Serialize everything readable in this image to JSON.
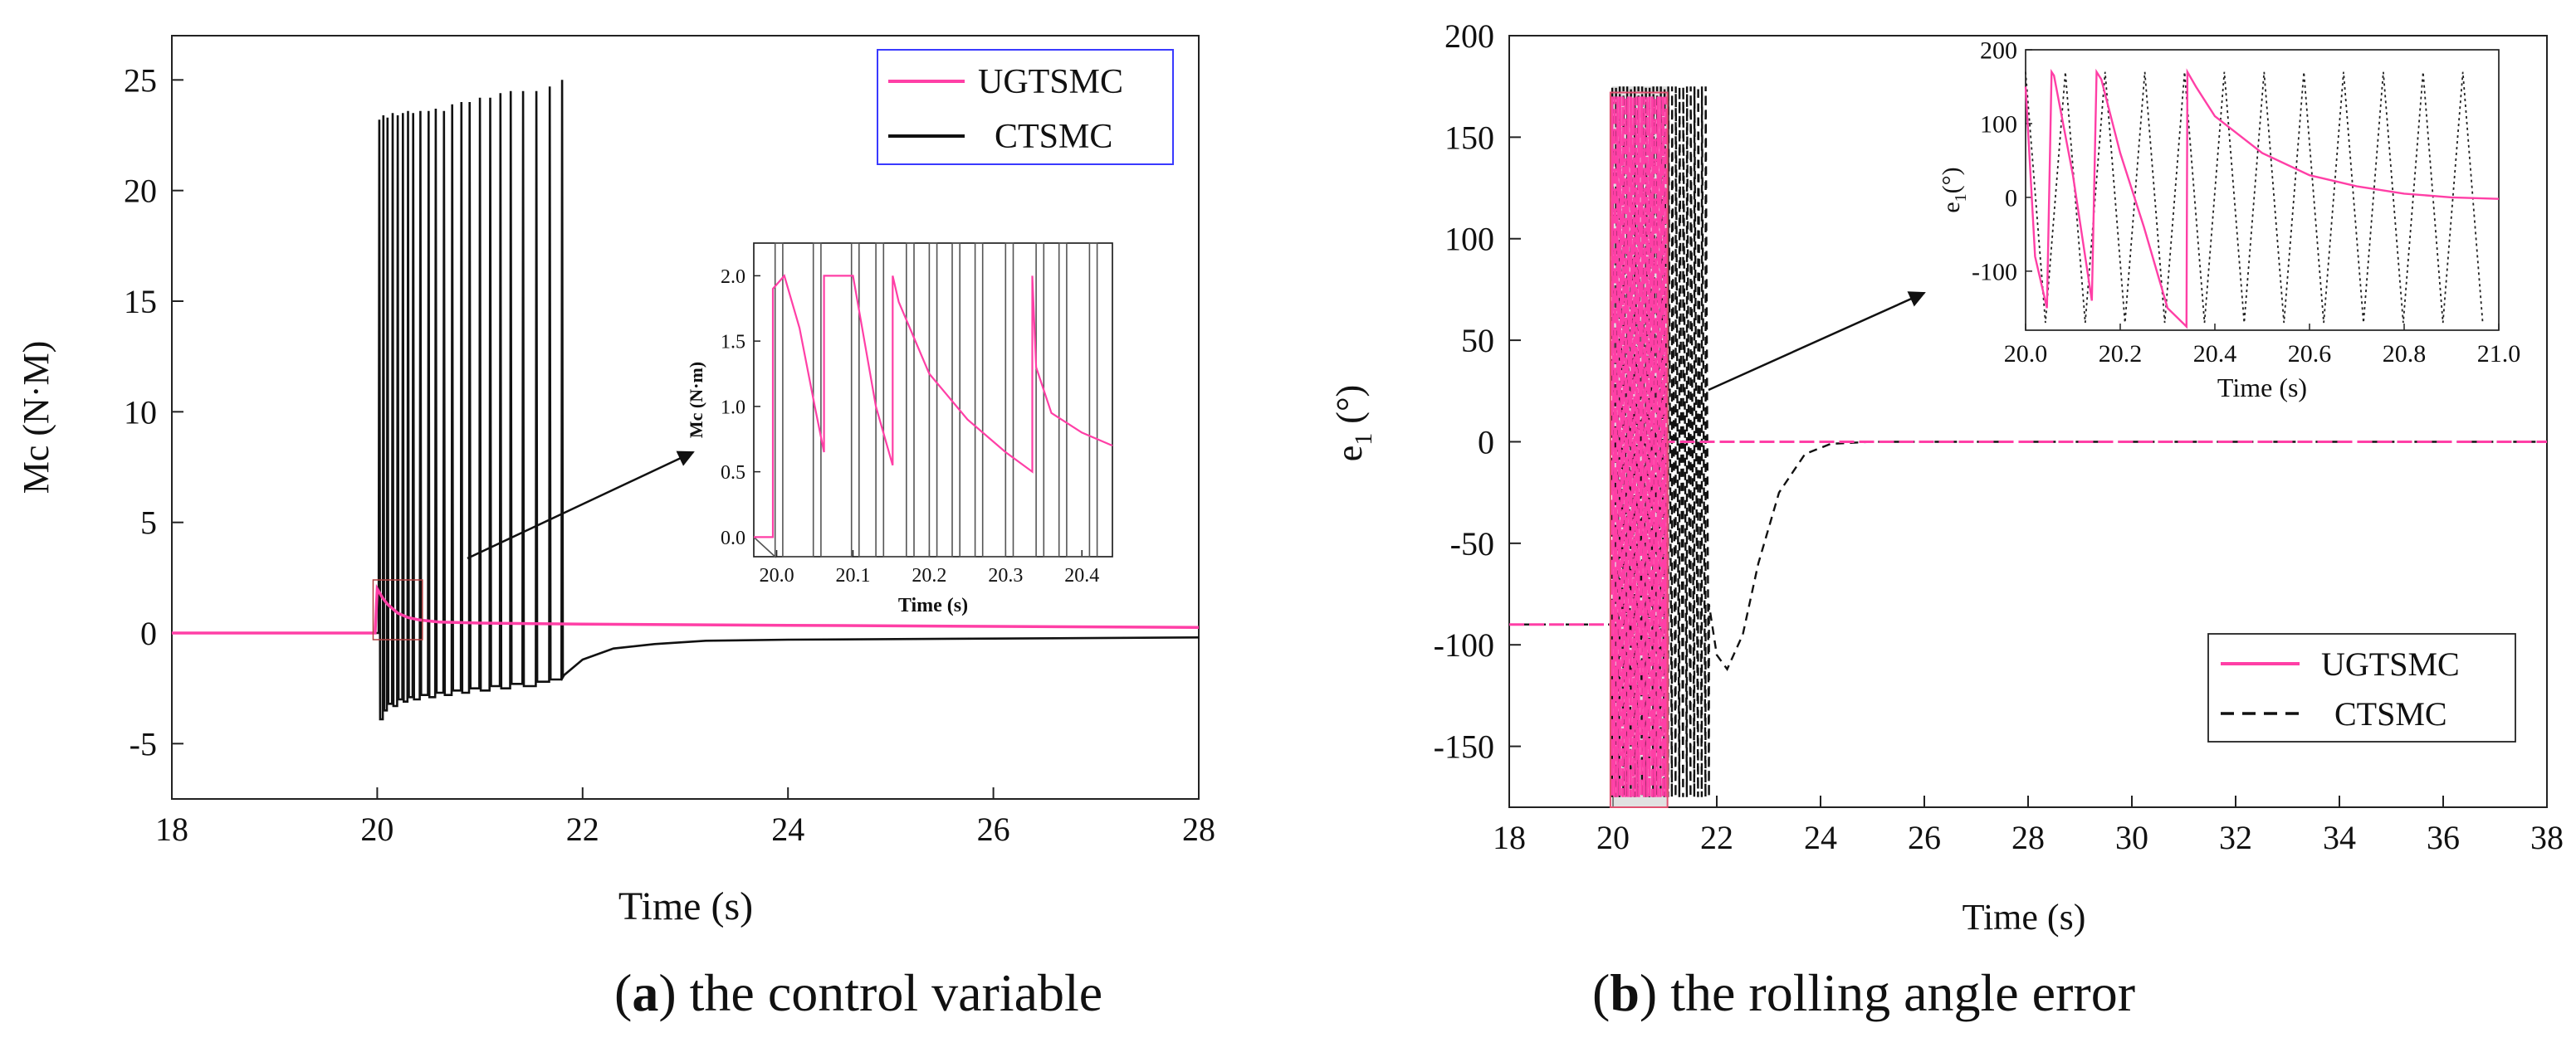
{
  "captions": {
    "a": {
      "paren_open": "(",
      "letter": "a",
      "paren_close": ")",
      "text": " the control variable"
    },
    "b": {
      "paren_open": "(",
      "letter": "b",
      "paren_close": ")",
      "text": " the rolling angle error"
    }
  },
  "colors": {
    "ugtsmc": "#ff3fa6",
    "ctsmc": "#111111",
    "legend_box_a": "#3a3aff",
    "axis": "#222222"
  },
  "chart_data": [
    {
      "id": "a",
      "type": "line",
      "ylabel": "Mc (N·M)",
      "xlabel": "Time (s)",
      "xlim": [
        18,
        28
      ],
      "ylim": [
        -7.5,
        27
      ],
      "xticks": [
        18,
        20,
        22,
        24,
        26,
        28
      ],
      "yticks": [
        -5,
        0,
        5,
        10,
        15,
        20,
        25
      ],
      "legend": [
        "UGTSMC",
        "CTSMC"
      ],
      "series": [
        {
          "name": "UGTSMC",
          "x": [
            18,
            19.98,
            20.0,
            20.05,
            20.1,
            20.2,
            20.3,
            20.4,
            20.6,
            21,
            22,
            24,
            26,
            28
          ],
          "y": [
            0,
            0,
            2.0,
            1.6,
            1.3,
            0.9,
            0.7,
            0.6,
            0.5,
            0.45,
            0.4,
            0.35,
            0.3,
            0.25
          ]
        },
        {
          "name": "CTSMC",
          "pre": {
            "x": [
              18,
              19.98
            ],
            "y": [
              0,
              0
            ]
          },
          "spikes": [
            {
              "t": 20.02,
              "peak": 23.2,
              "low": -3.9
            },
            {
              "t": 20.06,
              "peak": 23.4,
              "low": -3.5
            },
            {
              "t": 20.1,
              "peak": 23.3,
              "low": -3.2
            },
            {
              "t": 20.15,
              "peak": 23.5,
              "low": -3.3
            },
            {
              "t": 20.2,
              "peak": 23.4,
              "low": -3.0
            },
            {
              "t": 20.25,
              "peak": 23.5,
              "low": -3.1
            },
            {
              "t": 20.3,
              "peak": 23.6,
              "low": -2.9
            },
            {
              "t": 20.35,
              "peak": 23.5,
              "low": -3.0
            },
            {
              "t": 20.42,
              "peak": 23.6,
              "low": -2.8
            },
            {
              "t": 20.5,
              "peak": 23.6,
              "low": -2.9
            },
            {
              "t": 20.57,
              "peak": 23.7,
              "low": -2.7
            },
            {
              "t": 20.65,
              "peak": 23.6,
              "low": -2.8
            },
            {
              "t": 20.73,
              "peak": 23.9,
              "low": -2.6
            },
            {
              "t": 20.82,
              "peak": 24.0,
              "low": -2.7
            },
            {
              "t": 20.9,
              "peak": 24.0,
              "low": -2.5
            },
            {
              "t": 21.0,
              "peak": 24.2,
              "low": -2.6
            },
            {
              "t": 21.1,
              "peak": 24.2,
              "low": -2.4
            },
            {
              "t": 21.2,
              "peak": 24.4,
              "low": -2.5
            },
            {
              "t": 21.3,
              "peak": 24.5,
              "low": -2.3
            },
            {
              "t": 21.42,
              "peak": 24.5,
              "low": -2.4
            },
            {
              "t": 21.55,
              "peak": 24.5,
              "low": -2.2
            },
            {
              "t": 21.68,
              "peak": 24.7,
              "low": -2.1
            },
            {
              "t": 21.8,
              "peak": 25.0,
              "low": -2.0
            }
          ],
          "tail": {
            "x": [
              21.82,
              22.0,
              22.3,
              22.7,
              23.2,
              24,
              26,
              28
            ],
            "y": [
              -1.9,
              -1.2,
              -0.7,
              -0.5,
              -0.35,
              -0.3,
              -0.25,
              -0.2
            ]
          }
        }
      ],
      "inset": {
        "xlabel": "Time (s)",
        "ylabel": "Mc (N·m)",
        "xlim": [
          19.97,
          20.44
        ],
        "ylim": [
          -0.15,
          2.25
        ],
        "xticks": [
          20.0,
          20.1,
          20.2,
          20.3,
          20.4
        ],
        "xtick_labels": [
          "20.0",
          "20.1",
          "20.2",
          "20.3",
          "20.4"
        ],
        "yticks": [
          0.0,
          0.5,
          1.0,
          1.5,
          2.0
        ],
        "ytick_labels": [
          "0.0",
          "0.5",
          "1.0",
          "1.5",
          "2.0"
        ],
        "ugtsmc": {
          "x": [
            19.97,
            19.995,
            19.995,
            20.01,
            20.03,
            20.05,
            20.062,
            20.062,
            20.08,
            20.1,
            20.13,
            20.152,
            20.152,
            20.16,
            20.2,
            20.25,
            20.3,
            20.335,
            20.335,
            20.34,
            20.36,
            20.4,
            20.44
          ],
          "y": [
            0.0,
            0.0,
            1.9,
            2.0,
            1.6,
            1.0,
            0.65,
            2.0,
            2.0,
            2.0,
            1.0,
            0.55,
            2.0,
            1.8,
            1.25,
            0.9,
            0.65,
            0.5,
            2.0,
            1.3,
            0.95,
            0.8,
            0.7
          ]
        },
        "ctsmc_edges": [
          19.998,
          20.008,
          20.048,
          20.058,
          20.098,
          20.108,
          20.13,
          20.14,
          20.17,
          20.18,
          20.2,
          20.21,
          20.23,
          20.24,
          20.26,
          20.27,
          20.3,
          20.31,
          20.34,
          20.35,
          20.37,
          20.38,
          20.41,
          20.42
        ]
      }
    },
    {
      "id": "b",
      "type": "line",
      "ylabel": "e",
      "ylabel_sub": "1",
      "ylabel_unit": " (°)",
      "xlabel": "Time (s)",
      "xlim": [
        18,
        38
      ],
      "ylim": [
        -180,
        200
      ],
      "xticks": [
        18,
        20,
        22,
        24,
        26,
        28,
        30,
        32,
        34,
        36,
        38
      ],
      "yticks": [
        -150,
        -100,
        -50,
        0,
        50,
        100,
        150,
        200
      ],
      "legend": [
        "UGTSMC",
        "CTSMC"
      ],
      "series": [
        {
          "name": "UGTSMC",
          "pre": {
            "x": [
              18,
              19.98
            ],
            "y": [
              -90,
              -90
            ]
          },
          "saw_region": [
            19.98,
            21.05
          ],
          "amplitude": [
            -175,
            170
          ],
          "post": {
            "x": [
              21.05,
              21.5,
              22,
              24,
              38
            ],
            "y": [
              0,
              0,
              0,
              0,
              0
            ]
          }
        },
        {
          "name": "CTSMC",
          "pre": {
            "x": [
              18,
              19.98
            ],
            "y": [
              -90,
              -90
            ]
          },
          "saw_region": [
            19.98,
            21.85
          ],
          "amplitude": [
            -175,
            175
          ],
          "post": {
            "x": [
              21.85,
              22.0,
              22.2,
              22.5,
              22.8,
              23.2,
              23.7,
              24.2,
              25,
              38
            ],
            "y": [
              -80,
              -105,
              -112,
              -95,
              -60,
              -25,
              -6,
              -1,
              0,
              0
            ]
          }
        }
      ],
      "inset": {
        "xlabel": "Time (s)",
        "ylabel": "e",
        "ylabel_sub": "1",
        "ylabel_unit": "(°)",
        "xlim": [
          20.0,
          21.0
        ],
        "ylim": [
          -180,
          200
        ],
        "xticks": [
          20.0,
          20.2,
          20.4,
          20.6,
          20.8,
          21.0
        ],
        "xtick_labels": [
          "20.0",
          "20.2",
          "20.4",
          "20.6",
          "20.8",
          "21.0"
        ],
        "yticks": [
          -100,
          0,
          100,
          200
        ],
        "ytick_labels": [
          "-100",
          "0",
          "100",
          "200"
        ],
        "ugtsmc": {
          "x": [
            20.0,
            20.02,
            20.045,
            20.055,
            20.06,
            20.1,
            20.14,
            20.15,
            20.16,
            20.2,
            20.25,
            20.3,
            20.34,
            20.342,
            20.36,
            20.4,
            20.5,
            20.6,
            20.7,
            20.8,
            20.9,
            21.0
          ],
          "y": [
            150,
            -80,
            -150,
            170,
            165,
            30,
            -140,
            170,
            160,
            60,
            -40,
            -150,
            -175,
            170,
            150,
            110,
            60,
            30,
            15,
            5,
            0,
            -2
          ]
        }
      }
    }
  ]
}
